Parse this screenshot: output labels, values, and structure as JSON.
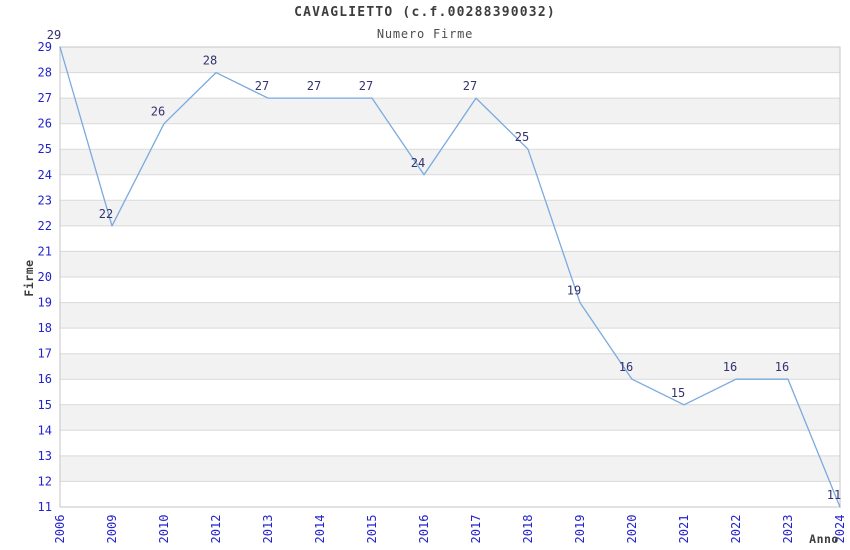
{
  "chart_data": {
    "type": "line",
    "title": "CAVAGLIETTO (c.f.00288390032)",
    "subtitle": "Numero Firme",
    "xlabel": "Anno",
    "ylabel": "Firme",
    "categories": [
      "2006",
      "2009",
      "2010",
      "2012",
      "2013",
      "2014",
      "2015",
      "2016",
      "2017",
      "2018",
      "2019",
      "2020",
      "2021",
      "2022",
      "2023",
      "2024"
    ],
    "values": [
      29,
      22,
      26,
      28,
      27,
      27,
      27,
      24,
      27,
      25,
      19,
      16,
      15,
      16,
      16,
      11
    ],
    "point_labels": [
      "29",
      "22",
      "26",
      "28",
      "27",
      "27",
      "27",
      "24",
      "27",
      "25",
      "19",
      "16",
      "15",
      "16",
      "16",
      "11"
    ],
    "ylim": [
      11,
      29
    ],
    "y_tick_step": 1,
    "grid": "horizontal",
    "band_fill": "alternating-gray-on-even",
    "legend": "none",
    "colors": {
      "line": "#7aaade",
      "tick_labels": "#2323cd",
      "point_labels": "#333370",
      "band": "#f2f2f2",
      "grid": "#d9d9d9",
      "border": "#c6c6c6",
      "title": "#3d3d3d",
      "axis_title": "#3d3d3d",
      "background": "#ffffff"
    }
  }
}
